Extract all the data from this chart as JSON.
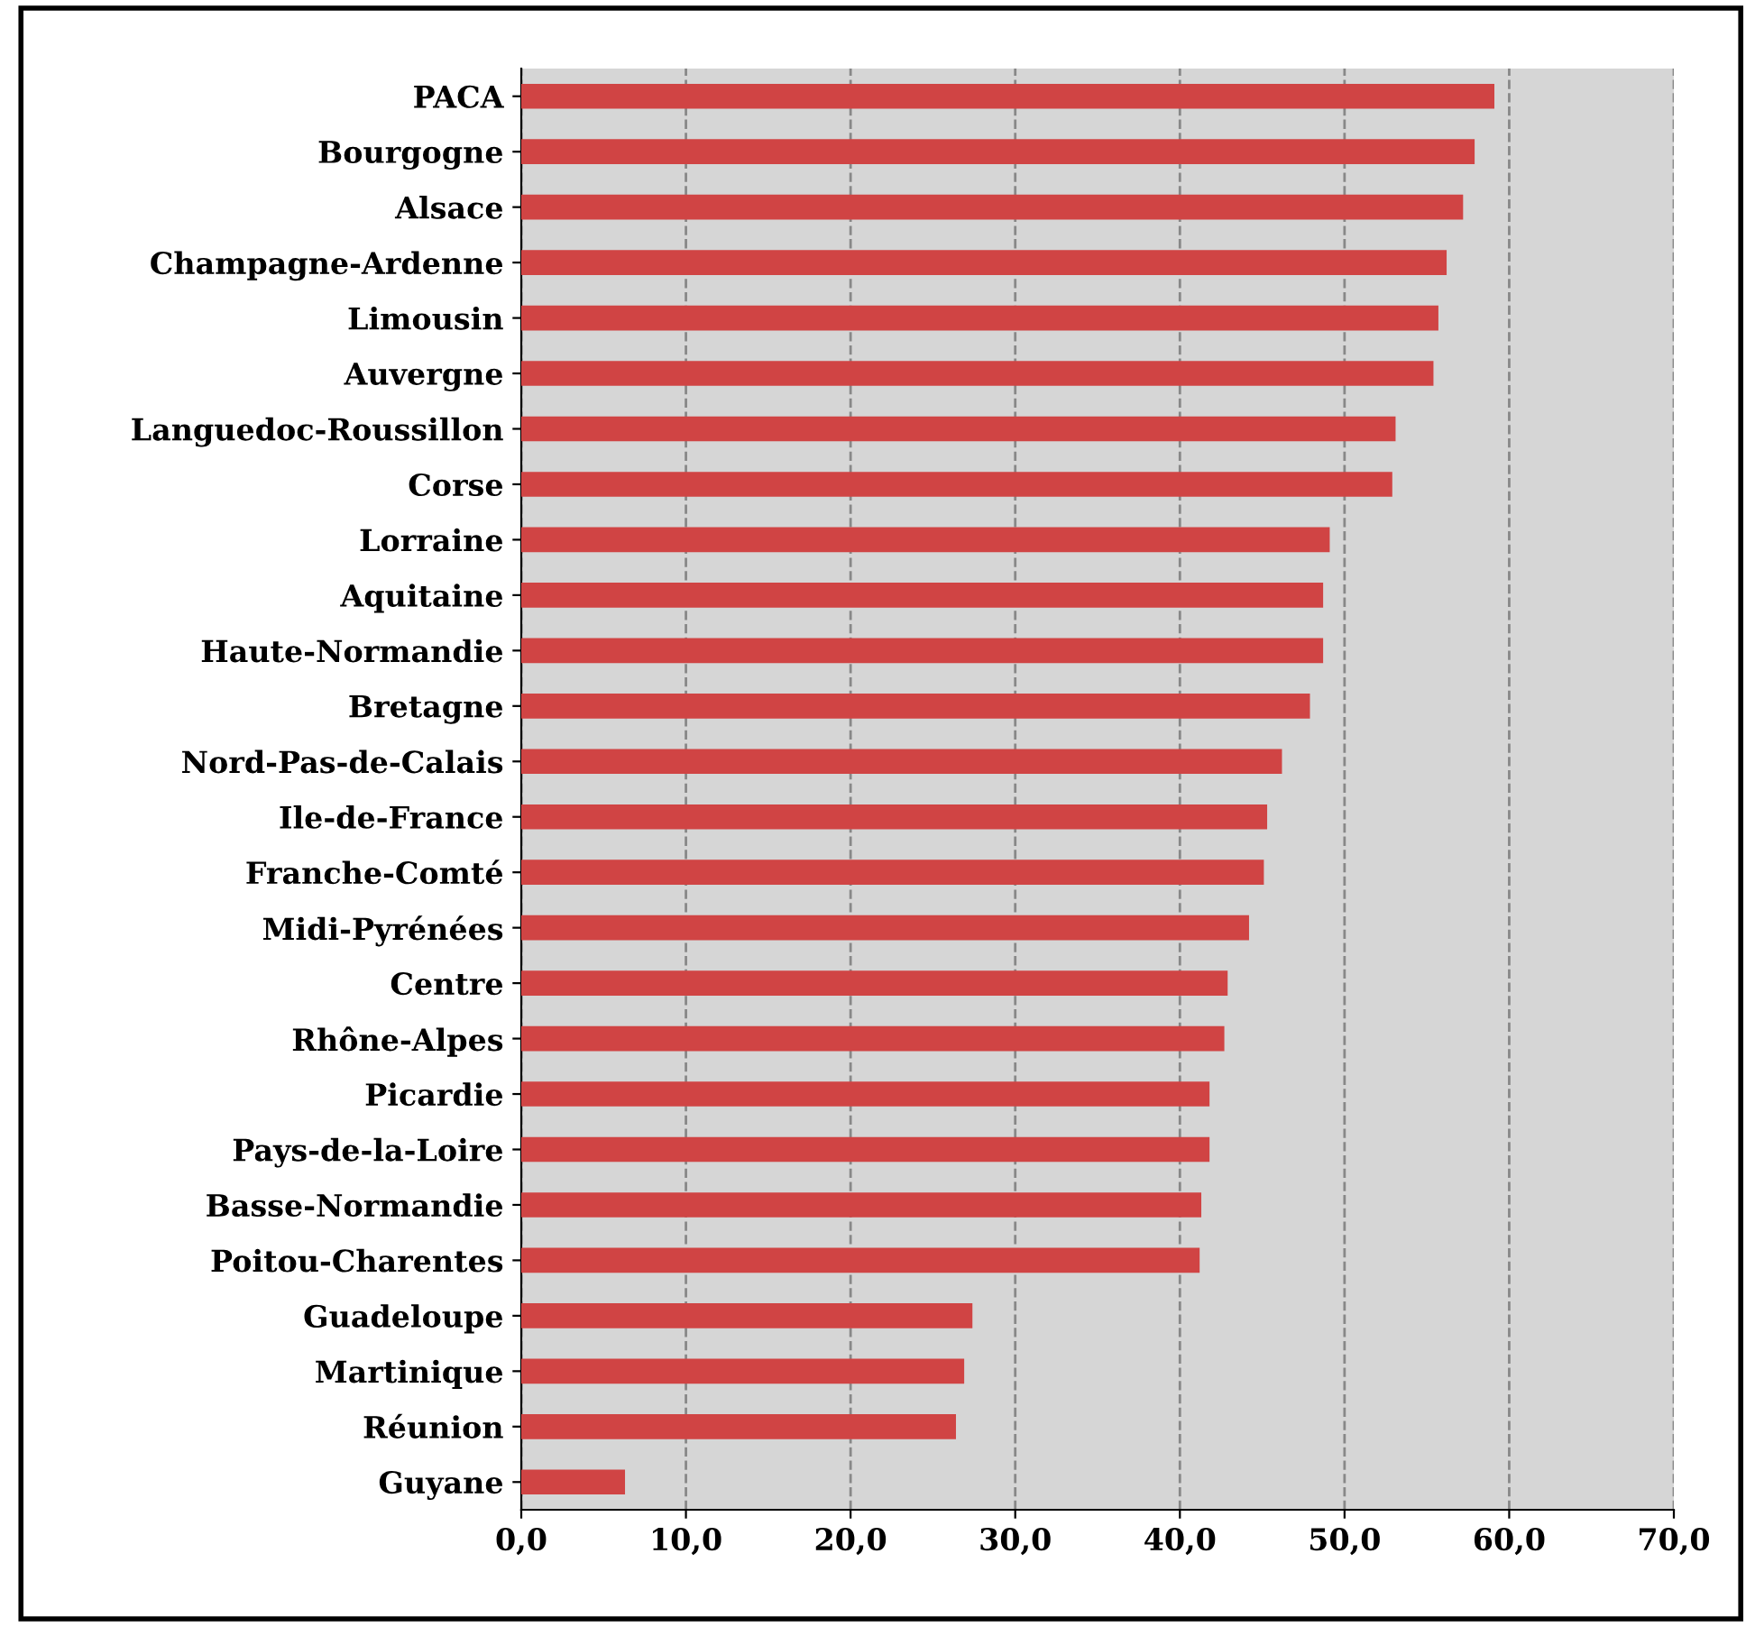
{
  "chart_data": {
    "type": "bar",
    "orientation": "horizontal",
    "categories": [
      "PACA",
      "Bourgogne",
      "Alsace",
      "Champagne-Ardenne",
      "Limousin",
      "Auvergne",
      "Languedoc-Roussillon",
      "Corse",
      "Lorraine",
      "Aquitaine",
      "Haute-Normandie",
      "Bretagne",
      "Nord-Pas-de-Calais",
      "Ile-de-France",
      "Franche-Comté",
      "Midi-Pyrénées",
      "Centre",
      "Rhône-Alpes",
      "Picardie",
      "Pays-de-la-Loire",
      "Basse-Normandie",
      "Poitou-Charentes",
      "Guadeloupe",
      "Martinique",
      "Réunion",
      "Guyane"
    ],
    "values": [
      59.1,
      57.9,
      57.2,
      56.2,
      55.7,
      55.4,
      53.1,
      52.9,
      49.1,
      48.7,
      48.7,
      47.9,
      46.2,
      45.3,
      45.1,
      44.2,
      42.9,
      42.7,
      41.8,
      41.8,
      41.3,
      41.2,
      27.4,
      26.9,
      26.4,
      6.3
    ],
    "color": "#d04444",
    "xlim": [
      0,
      70
    ],
    "xticks": [
      {
        "value": 0,
        "label": "0,0"
      },
      {
        "value": 10,
        "label": "10,0"
      },
      {
        "value": 20,
        "label": "20,0"
      },
      {
        "value": 30,
        "label": "30,0"
      },
      {
        "value": 40,
        "label": "40,0"
      },
      {
        "value": 50,
        "label": "50,0"
      },
      {
        "value": 60,
        "label": "60,0"
      },
      {
        "value": 70,
        "label": "70,0"
      }
    ],
    "grid": "x"
  }
}
